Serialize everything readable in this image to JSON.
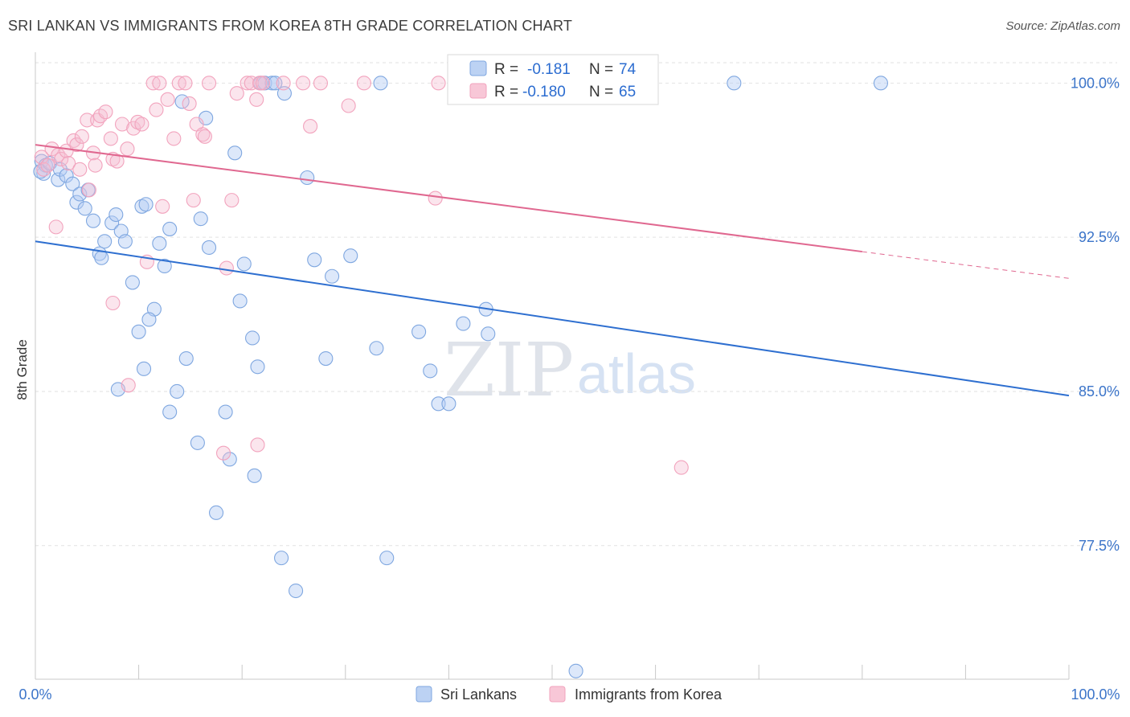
{
  "title": "SRI LANKAN VS IMMIGRANTS FROM KOREA 8TH GRADE CORRELATION CHART",
  "source": "Source: ZipAtlas.com",
  "watermark": {
    "zip": "ZIP",
    "atlas": "atlas"
  },
  "legend": {
    "r_label": "R =",
    "n_label": "N =",
    "rows": [
      {
        "r": "-0.181",
        "n": "74"
      },
      {
        "r": "-0.180",
        "n": "65"
      }
    ]
  },
  "chart_data": {
    "type": "scatter",
    "title": "SRI LANKAN VS IMMIGRANTS FROM KOREA 8TH GRADE CORRELATION CHART",
    "xlabel": "",
    "ylabel": "8th Grade",
    "xlim": [
      0,
      100
    ],
    "ylim": [
      71,
      101.5
    ],
    "x_tick_labels": [
      "0.0%",
      "100.0%"
    ],
    "y_ticks": [
      {
        "value": 100.0,
        "label": "100.0%"
      },
      {
        "value": 92.5,
        "label": "92.5%"
      },
      {
        "value": 85.0,
        "label": "85.0%"
      },
      {
        "value": 77.5,
        "label": "77.5%"
      }
    ],
    "grid": "horizontal dashed",
    "legend_position": "top-center",
    "series": [
      {
        "name": "Sri Lankans",
        "color": "#7fa7e0",
        "line_color": "#2e6fd0",
        "r": -0.181,
        "n": 74,
        "trend": {
          "x": [
            0,
            100
          ],
          "y": [
            92.3,
            84.8
          ]
        },
        "points": [
          [
            0.6,
            96.2
          ],
          [
            0.8,
            95.6
          ],
          [
            1.0,
            96.0
          ],
          [
            0.5,
            95.7
          ],
          [
            1.4,
            96.1
          ],
          [
            2.2,
            95.3
          ],
          [
            2.4,
            95.8
          ],
          [
            3.0,
            95.5
          ],
          [
            3.6,
            95.1
          ],
          [
            4.0,
            94.2
          ],
          [
            4.3,
            94.6
          ],
          [
            4.8,
            93.9
          ],
          [
            5.1,
            94.8
          ],
          [
            5.6,
            93.3
          ],
          [
            7.4,
            93.2
          ],
          [
            7.8,
            93.6
          ],
          [
            8.3,
            92.8
          ],
          [
            6.7,
            92.3
          ],
          [
            6.2,
            91.7
          ],
          [
            6.4,
            91.5
          ],
          [
            8.7,
            92.3
          ],
          [
            9.4,
            90.3
          ],
          [
            10.3,
            94.0
          ],
          [
            10.7,
            94.1
          ],
          [
            11.5,
            89.0
          ],
          [
            11.0,
            88.5
          ],
          [
            10.0,
            87.9
          ],
          [
            10.5,
            86.1
          ],
          [
            12.0,
            92.2
          ],
          [
            13.0,
            92.9
          ],
          [
            12.5,
            91.1
          ],
          [
            13.7,
            85.0
          ],
          [
            14.6,
            86.6
          ],
          [
            15.7,
            82.5
          ],
          [
            14.2,
            99.1
          ],
          [
            16.5,
            98.3
          ],
          [
            16.0,
            93.4
          ],
          [
            16.8,
            92.0
          ],
          [
            17.5,
            79.1
          ],
          [
            18.4,
            84.0
          ],
          [
            18.8,
            81.7
          ],
          [
            19.3,
            96.6
          ],
          [
            19.8,
            89.4
          ],
          [
            20.2,
            91.2
          ],
          [
            21.0,
            87.6
          ],
          [
            21.5,
            86.2
          ],
          [
            21.2,
            80.9
          ],
          [
            21.8,
            100.0
          ],
          [
            22.2,
            100.0
          ],
          [
            22.9,
            100.0
          ],
          [
            23.2,
            100.0
          ],
          [
            24.1,
            99.5
          ],
          [
            23.8,
            76.9
          ],
          [
            25.2,
            75.3
          ],
          [
            13.0,
            84.0
          ],
          [
            8.0,
            85.1
          ],
          [
            27.0,
            91.4
          ],
          [
            26.3,
            95.4
          ],
          [
            28.1,
            86.6
          ],
          [
            28.7,
            90.6
          ],
          [
            30.5,
            91.6
          ],
          [
            33.0,
            87.1
          ],
          [
            33.4,
            100.0
          ],
          [
            37.1,
            87.9
          ],
          [
            38.2,
            86.0
          ],
          [
            39.0,
            84.4
          ],
          [
            40.0,
            84.4
          ],
          [
            41.4,
            88.3
          ],
          [
            43.6,
            89.0
          ],
          [
            43.8,
            87.8
          ],
          [
            34.0,
            76.9
          ],
          [
            52.3,
            71.4
          ],
          [
            67.6,
            100.0
          ],
          [
            81.8,
            100.0
          ]
        ]
      },
      {
        "name": "Immigrants from Korea",
        "color": "#f2a3bd",
        "line_color": "#e06890",
        "r": -0.18,
        "n": 65,
        "trend": {
          "x": [
            0,
            80
          ],
          "y": [
            97.0,
            91.8
          ]
        },
        "trend_dashed": {
          "x": [
            80,
            100
          ],
          "y": [
            91.8,
            90.5
          ]
        },
        "points": [
          [
            0.6,
            96.4
          ],
          [
            0.8,
            95.8
          ],
          [
            1.2,
            96.0
          ],
          [
            1.6,
            96.8
          ],
          [
            2.2,
            96.5
          ],
          [
            2.5,
            96.3
          ],
          [
            3.0,
            96.7
          ],
          [
            3.2,
            96.1
          ],
          [
            3.7,
            97.2
          ],
          [
            4.0,
            97.0
          ],
          [
            4.3,
            95.8
          ],
          [
            4.5,
            97.4
          ],
          [
            5.0,
            98.2
          ],
          [
            5.6,
            96.6
          ],
          [
            5.8,
            96.0
          ],
          [
            5.2,
            94.8
          ],
          [
            6.0,
            98.2
          ],
          [
            6.3,
            98.4
          ],
          [
            6.8,
            98.6
          ],
          [
            7.3,
            97.3
          ],
          [
            7.5,
            96.3
          ],
          [
            7.9,
            96.2
          ],
          [
            8.4,
            98.0
          ],
          [
            8.9,
            96.8
          ],
          [
            9.5,
            97.8
          ],
          [
            9.9,
            98.1
          ],
          [
            10.3,
            98.0
          ],
          [
            10.8,
            91.3
          ],
          [
            11.4,
            100.0
          ],
          [
            11.7,
            98.7
          ],
          [
            12.0,
            100.0
          ],
          [
            12.3,
            94.0
          ],
          [
            12.8,
            99.2
          ],
          [
            13.4,
            97.3
          ],
          [
            13.9,
            100.0
          ],
          [
            14.5,
            100.0
          ],
          [
            14.9,
            99.0
          ],
          [
            15.3,
            94.3
          ],
          [
            15.6,
            98.0
          ],
          [
            16.2,
            97.5
          ],
          [
            16.4,
            97.4
          ],
          [
            16.8,
            100.0
          ],
          [
            18.5,
            91.0
          ],
          [
            19.0,
            94.3
          ],
          [
            19.5,
            99.5
          ],
          [
            20.5,
            100.0
          ],
          [
            20.9,
            100.0
          ],
          [
            21.4,
            99.2
          ],
          [
            21.7,
            100.0
          ],
          [
            22.0,
            100.0
          ],
          [
            24.0,
            100.0
          ],
          [
            25.9,
            100.0
          ],
          [
            26.6,
            97.9
          ],
          [
            27.6,
            100.0
          ],
          [
            30.3,
            98.9
          ],
          [
            31.8,
            100.0
          ],
          [
            38.7,
            94.4
          ],
          [
            39.0,
            100.0
          ],
          [
            9.0,
            85.3
          ],
          [
            7.5,
            89.3
          ],
          [
            18.2,
            82.0
          ],
          [
            21.5,
            82.4
          ],
          [
            41.4,
            100.0
          ],
          [
            62.5,
            81.3
          ],
          [
            2.0,
            93.0
          ]
        ]
      }
    ]
  }
}
